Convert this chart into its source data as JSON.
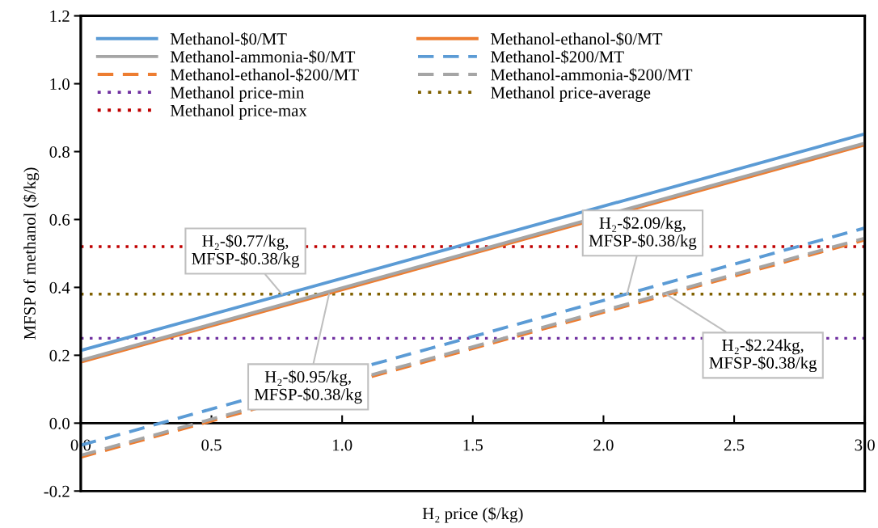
{
  "chart_data": {
    "type": "line",
    "xlabel": "H₂ price ($/kg)",
    "ylabel": "MFSP of methanol ($/kg)",
    "x": [
      0,
      3
    ],
    "series": [
      {
        "name": "Methanol-$0/MT",
        "color": "#5b9bd5",
        "values": [
          0.214,
          0.852
        ],
        "line_style": "solid"
      },
      {
        "name": "Methanol-ethanol-$0/MT",
        "color": "#ed7d31",
        "values": [
          0.18,
          0.82
        ],
        "line_style": "solid"
      },
      {
        "name": "Methanol-ammonia-$0/MT",
        "color": "#a5a5a5",
        "values": [
          0.185,
          0.825
        ],
        "line_style": "solid"
      },
      {
        "name": "Methanol-$200/MT",
        "color": "#5b9bd5",
        "values": [
          -0.065,
          0.575
        ],
        "line_style": "dashed"
      },
      {
        "name": "Methanol-ethanol-$200/MT",
        "color": "#ed7d31",
        "values": [
          -0.1,
          0.54
        ],
        "line_style": "dashed"
      },
      {
        "name": "Methanol-ammonia-$200/MT",
        "color": "#a5a5a5",
        "values": [
          -0.095,
          0.545
        ],
        "line_style": "dashed"
      }
    ],
    "ref_lines": [
      {
        "axis": "y",
        "value": 0.25,
        "label": "Methanol price-min",
        "color": "#7030a0",
        "line_style": "dotted"
      },
      {
        "axis": "y",
        "value": 0.38,
        "label": "Methanol price-average",
        "color": "#806000",
        "line_style": "dotted"
      },
      {
        "axis": "y",
        "value": 0.52,
        "label": "Methanol price-max",
        "color": "#c00000",
        "line_style": "dotted"
      }
    ],
    "annotations": [
      {
        "text": "H₂-$0.77/kg,\nMFSP-$0.38/kg",
        "x": 0.77,
        "y": 0.38
      },
      {
        "text": "H₂-$0.95/kg,\nMFSP-$0.38/kg",
        "x": 0.95,
        "y": 0.38
      },
      {
        "text": "H₂-$2.09/kg,\nMFSP-$0.38/kg",
        "x": 2.09,
        "y": 0.38
      },
      {
        "text": "H₂-$2.24kg,\nMFSP-$0.38/kg",
        "x": 2.24,
        "y": 0.38
      }
    ],
    "xlim": [
      0,
      3
    ],
    "xticks": [
      {
        "value": 0,
        "label": "0.0"
      },
      0.5,
      {
        "value": 1,
        "label": "1.0"
      },
      1.5,
      {
        "value": 2,
        "label": "2.0"
      },
      2.5,
      {
        "value": 3,
        "label": "3.0"
      }
    ],
    "ylim": [
      -0.2,
      1.2
    ],
    "yticks": [
      -0.2,
      {
        "value": 0,
        "label": "0.0"
      },
      0.2,
      0.4,
      0.6,
      0.8,
      {
        "value": 1,
        "label": "1.0"
      },
      1.2
    ],
    "grid": false,
    "legend": "top left",
    "marker": "none"
  }
}
